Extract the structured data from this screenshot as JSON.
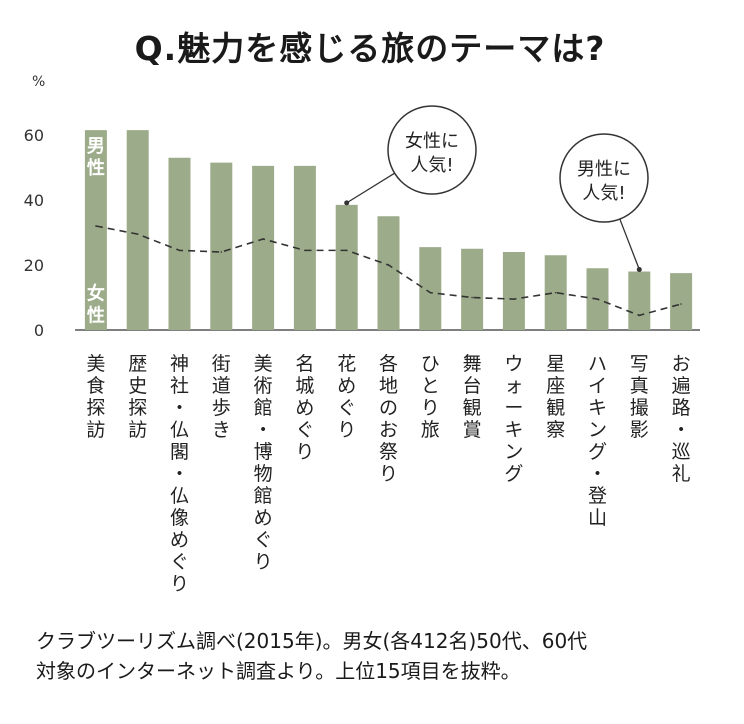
{
  "chart_data": {
    "type": "bar",
    "title": "Q.魅力を感じる旅のテーマは?",
    "ylabel": "%",
    "ylim": [
      0,
      70
    ],
    "yticks": [
      "0",
      "20",
      "40",
      "60"
    ],
    "grid": false,
    "categories": [
      "美食探訪",
      "歴史探訪",
      "神社・仏閣・仏像めぐり",
      "街道歩き",
      "美術館・博物館めぐり",
      "名城めぐり",
      "花めぐり",
      "各地のお祭り",
      "ひとり旅",
      "舞台観賞",
      "ウォーキング",
      "星座観察",
      "ハイキング・登山",
      "写真撮影",
      "お遍路・巡礼"
    ],
    "series": [
      {
        "name": "男性",
        "kind": "bar",
        "color": "#9cab89",
        "values": [
          61.5,
          61.5,
          53,
          51.5,
          50.5,
          50.5,
          38.5,
          35,
          25.5,
          25,
          24,
          23,
          19,
          18,
          17.5
        ]
      },
      {
        "name": "女性",
        "kind": "dashed-line",
        "color": "#333333",
        "values": [
          32,
          29.5,
          24.5,
          24,
          28,
          24.5,
          24.5,
          20,
          11.5,
          10,
          9.5,
          11.5,
          9.5,
          4.5,
          8
        ]
      }
    ],
    "annotations": [
      {
        "text": "女性に人気!",
        "target_category": "花めぐり"
      },
      {
        "text": "男性に人気!",
        "target_category": "写真撮影"
      }
    ]
  },
  "footnote": {
    "line1": "クラブツーリズム調べ(2015年)。男女(各412名)50代、60代",
    "line2": "対象のインターネット調査より。上位15項目を抜粋。"
  }
}
